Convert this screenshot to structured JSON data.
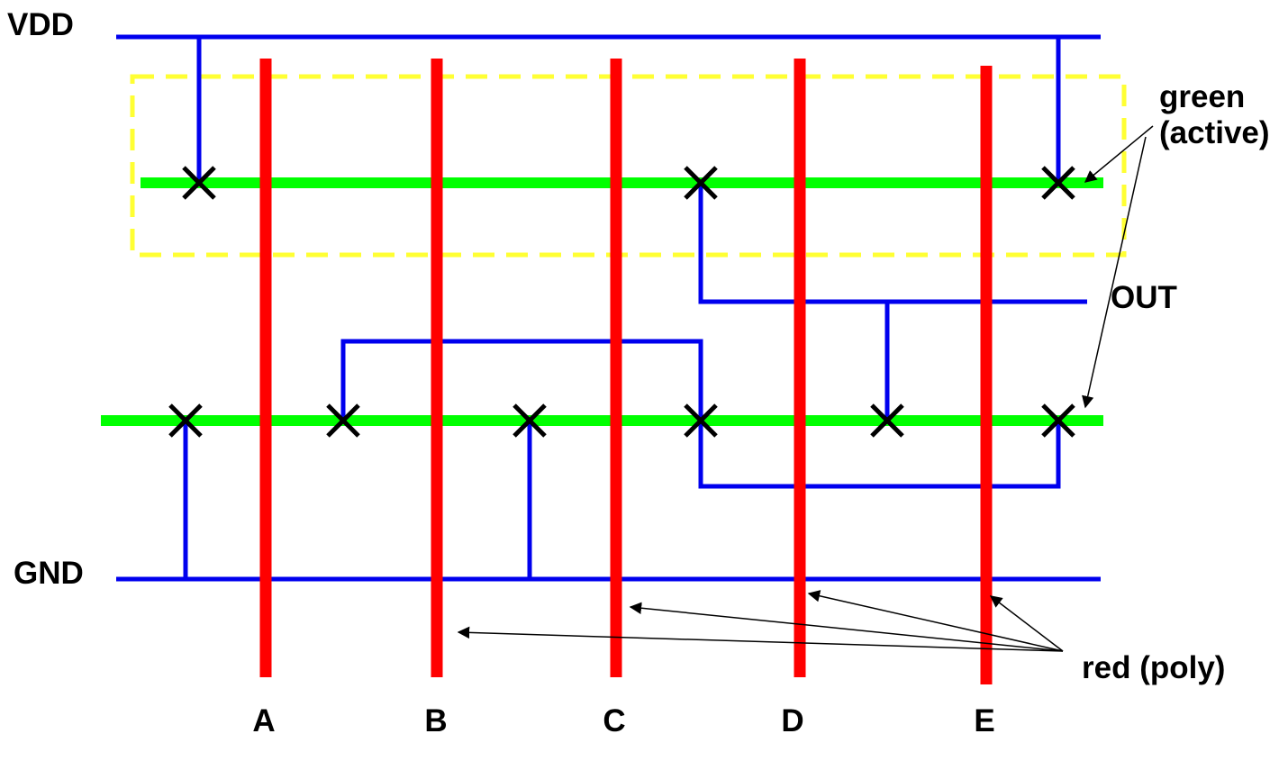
{
  "labels": {
    "vdd": "VDD",
    "gnd": "GND",
    "out": "OUT",
    "active_line1": "green",
    "active_line2": "(active)",
    "poly": "red (poly)"
  },
  "inputs": [
    {
      "name": "A"
    },
    {
      "name": "B"
    },
    {
      "name": "C"
    },
    {
      "name": "D"
    },
    {
      "name": "E"
    }
  ],
  "colors": {
    "metal": "#0000ee",
    "poly": "#ff0000",
    "active": "#00ff00",
    "well_outline": "#ffff33",
    "contact": "#000000",
    "annotation": "#000000"
  },
  "contacts": {
    "top_row_count": 3,
    "bottom_row_count": 6
  }
}
